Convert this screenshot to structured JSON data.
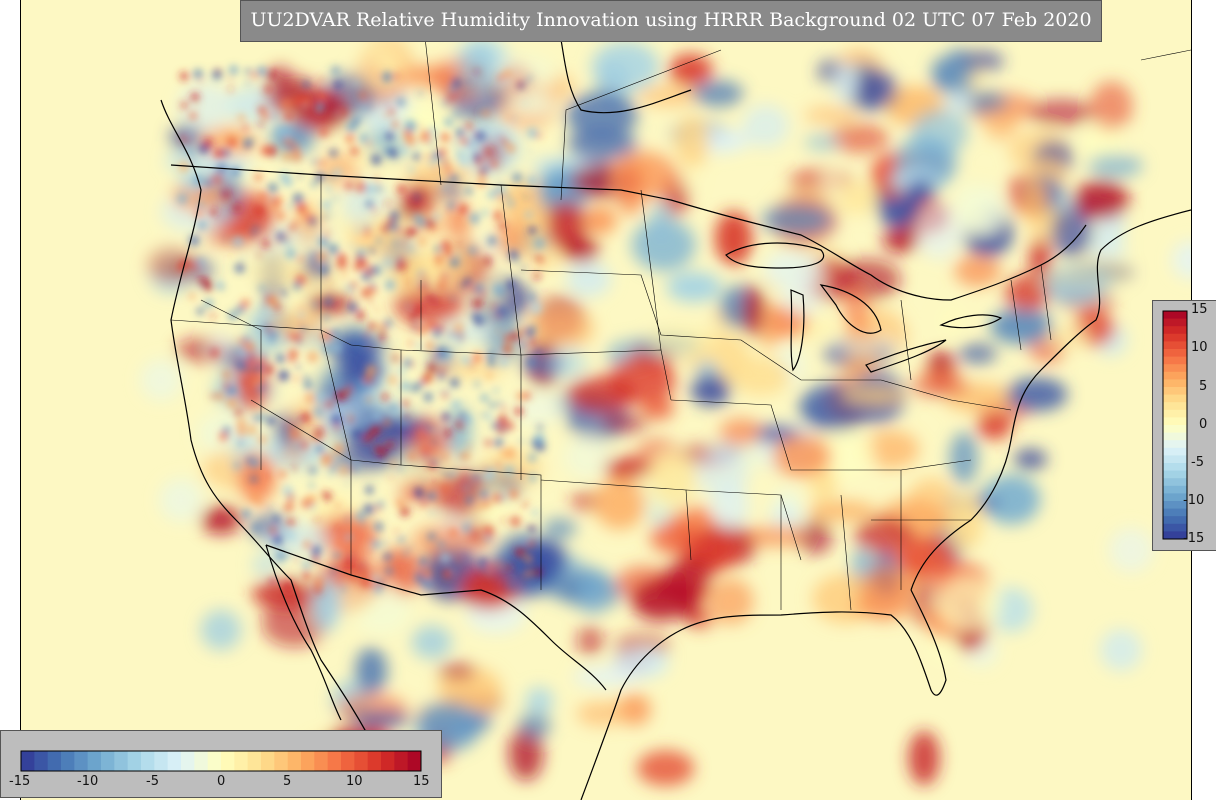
{
  "title": "UU2DVAR Relative Humidity Innovation using HRRR Background 02 UTC 07 Feb 2020",
  "colorbar": {
    "ticks": [
      "-15",
      "-10",
      "-5",
      "0",
      "5",
      "10",
      "15"
    ],
    "min": -15,
    "max": 15,
    "colors": [
      "#313695",
      "#4575b4",
      "#74add1",
      "#abd9e9",
      "#e0f3f8",
      "#ffffbf",
      "#fee090",
      "#fdae61",
      "#f46d43",
      "#d73027",
      "#a50026"
    ]
  }
}
